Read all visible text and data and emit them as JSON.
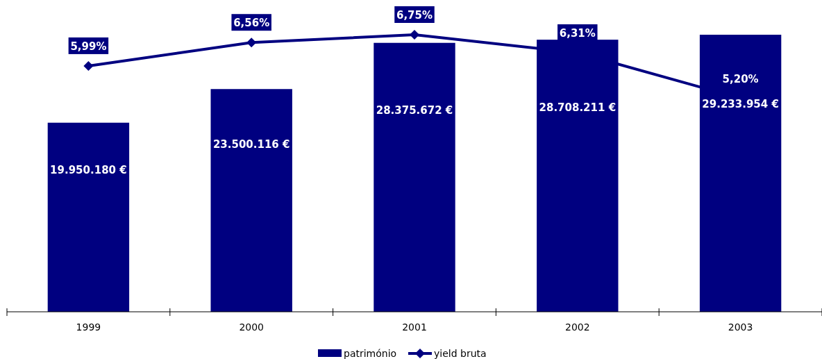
{
  "chart_data": {
    "type": "bar",
    "categories": [
      "1999",
      "2000",
      "2001",
      "2002",
      "2003"
    ],
    "series": [
      {
        "name": "património",
        "color": "#000080",
        "values": [
          19950180,
          23500116,
          28375672,
          28708211,
          29233954
        ],
        "value_labels": [
          "19.950.180 €",
          "23.500.116 €",
          "28.375.672 €",
          "28.708.211 €",
          "29.233.954 €"
        ]
      },
      {
        "name": "yield bruta",
        "type": "line",
        "axis": "y2",
        "color": "#000080",
        "marker": "diamond",
        "values": [
          5.99,
          6.56,
          6.75,
          6.31,
          5.2
        ],
        "value_labels": [
          "5,99%",
          "6,56%",
          "6,75%",
          "6,31%",
          "5,20%"
        ]
      }
    ],
    "legend": "bottom"
  }
}
